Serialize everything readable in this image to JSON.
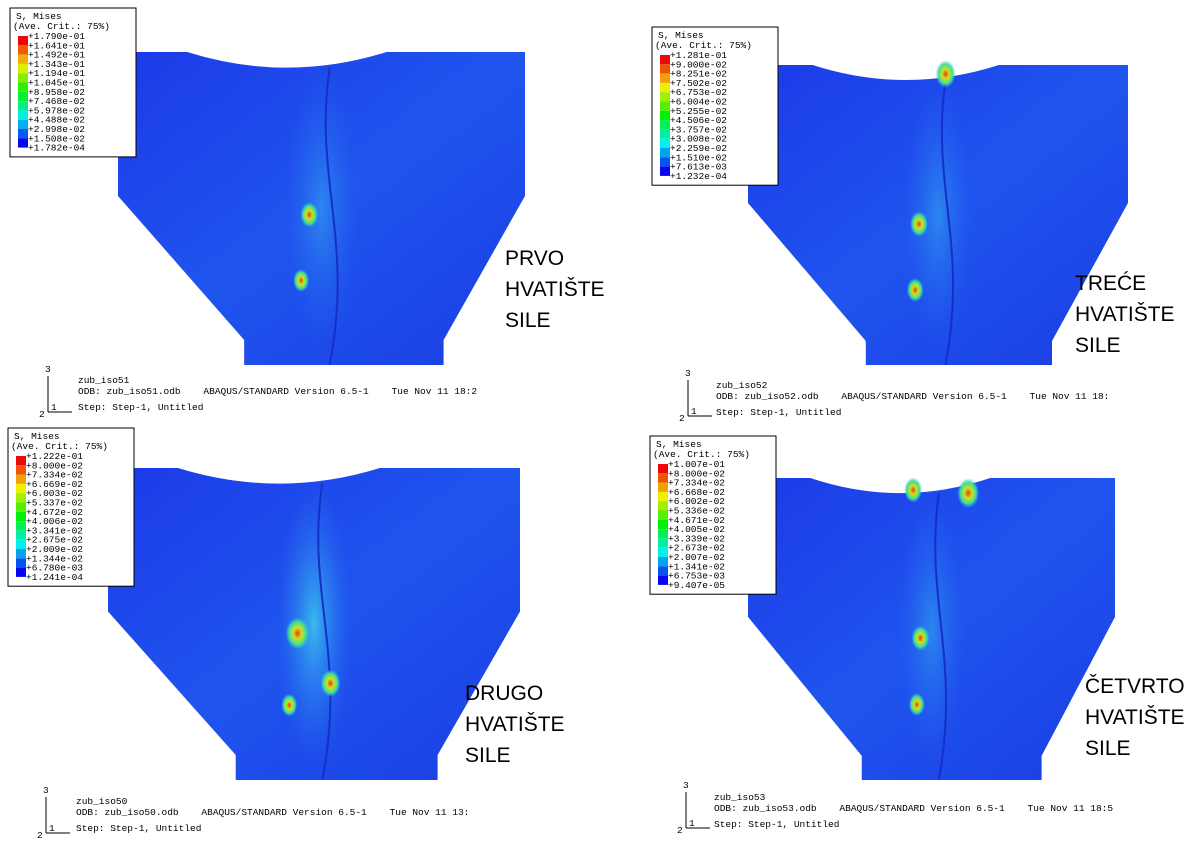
{
  "panels": [
    {
      "legend": {
        "title": "S, Mises",
        "subtitle": "(Ave. Crit.: 75%)",
        "values": [
          "+1.790e-01",
          "+1.641e-01",
          "+1.492e-01",
          "+1.343e-01",
          "+1.194e-01",
          "+1.045e-01",
          "+8.958e-02",
          "+7.468e-02",
          "+5.978e-02",
          "+4.488e-02",
          "+2.998e-02",
          "+1.508e-02",
          "+1.782e-04"
        ]
      },
      "label": [
        "PRVO",
        "HVATIŠTE",
        "SILE"
      ],
      "info": {
        "model": "zub_iso51",
        "odb": "ODB: zub_iso51.odb    ABAQUS/STANDARD Version 6.5-1    Tue Nov 11 18:2",
        "step": "Step: Step-1, Untitled"
      },
      "axes": [
        "3",
        "2",
        "1"
      ]
    },
    {
      "legend": {
        "title": "S, Mises",
        "subtitle": "(Ave. Crit.: 75%)",
        "values": [
          "+1.281e-01",
          "+9.000e-02",
          "+8.251e-02",
          "+7.502e-02",
          "+6.753e-02",
          "+6.004e-02",
          "+5.255e-02",
          "+4.506e-02",
          "+3.757e-02",
          "+3.008e-02",
          "+2.259e-02",
          "+1.510e-02",
          "+7.613e-03",
          "+1.232e-04"
        ]
      },
      "label": [
        "TREĆE",
        "HVATIŠTE",
        "SILE"
      ],
      "info": {
        "model": "zub_iso52",
        "odb": "ODB: zub_iso52.odb    ABAQUS/STANDARD Version 6.5-1    Tue Nov 11 18:",
        "step": "Step: Step-1, Untitled"
      },
      "axes": [
        "3",
        "2",
        "1"
      ]
    },
    {
      "legend": {
        "title": "S, Mises",
        "subtitle": "(Ave. Crit.: 75%)",
        "values": [
          "+1.222e-01",
          "+8.000e-02",
          "+7.334e-02",
          "+6.669e-02",
          "+6.003e-02",
          "+5.337e-02",
          "+4.672e-02",
          "+4.006e-02",
          "+3.341e-02",
          "+2.675e-02",
          "+2.009e-02",
          "+1.344e-02",
          "+6.780e-03",
          "+1.241e-04"
        ]
      },
      "label": [
        "DRUGO",
        "HVATIŠTE",
        "SILE"
      ],
      "info": {
        "model": "zub_iso50",
        "odb": "ODB: zub_iso50.odb    ABAQUS/STANDARD Version 6.5-1    Tue Nov 11 13:",
        "step": "Step: Step-1, Untitled"
      },
      "axes": [
        "3",
        "2",
        "1"
      ]
    },
    {
      "legend": {
        "title": "S, Mises",
        "subtitle": "(Ave. Crit.: 75%)",
        "values": [
          "+1.007e-01",
          "+8.000e-02",
          "+7.334e-02",
          "+6.668e-02",
          "+6.002e-02",
          "+5.336e-02",
          "+4.671e-02",
          "+4.005e-02",
          "+3.339e-02",
          "+2.673e-02",
          "+2.007e-02",
          "+1.341e-02",
          "+6.753e-03",
          "+9.407e-05"
        ]
      },
      "label": [
        "ČETVRTO",
        "HVATIŠTE",
        "SILE"
      ],
      "info": {
        "model": "zub_iso53",
        "odb": "ODB: zub_iso53.odb    ABAQUS/STANDARD Version 6.5-1    Tue Nov 11 18:5",
        "step": "Step: Step-1, Untitled"
      },
      "axes": [
        "3",
        "2",
        "1"
      ]
    }
  ]
}
